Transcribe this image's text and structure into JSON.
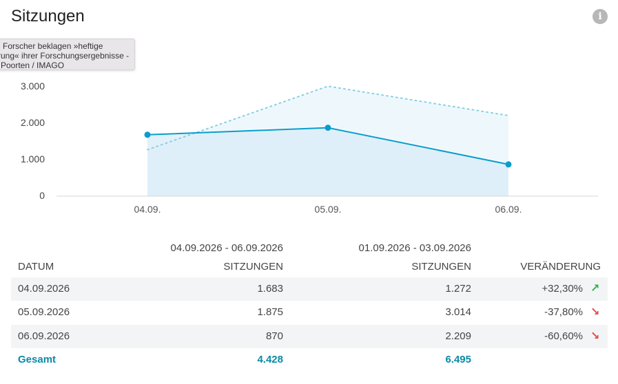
{
  "header": {
    "title": "Sitzungen",
    "info_icon": "info-icon"
  },
  "tooltip": {
    "line1": "Forscher beklagen »heftige",
    "line2": "rung« ihrer Forschungsergebnisse -",
    "line3": "Poorten / IMAGO"
  },
  "chart_data": {
    "type": "line",
    "categories": [
      "04.09.",
      "05.09.",
      "06.09."
    ],
    "series": [
      {
        "values": [
          1683,
          1875,
          870
        ],
        "color": "#0a9dcc",
        "style": "solid"
      },
      {
        "values": [
          1272,
          3014,
          2209
        ],
        "color": "#86cfe3",
        "style": "dotted"
      }
    ],
    "y_ticks": [
      "0",
      "1.000",
      "2.000",
      "3.000"
    ],
    "ylim": [
      0,
      3000
    ],
    "grid": false
  },
  "table": {
    "period_current": "04.09.2026 - 06.09.2026",
    "period_previous": "01.09.2026 - 03.09.2026",
    "columns": [
      "DATUM",
      "SITZUNGEN",
      "SITZUNGEN",
      "VERÄNDERUNG"
    ],
    "rows": [
      {
        "date": "04.09.2026",
        "current": "1.683",
        "previous": "1.272",
        "change": "+32,30%",
        "trend": "up",
        "arrow": "↗"
      },
      {
        "date": "05.09.2026",
        "current": "1.875",
        "previous": "3.014",
        "change": "-37,80%",
        "trend": "down",
        "arrow": "↘"
      },
      {
        "date": "06.09.2026",
        "current": "870",
        "previous": "2.209",
        "change": "-60,60%",
        "trend": "down",
        "arrow": "↘"
      }
    ],
    "total": {
      "label": "Gesamt",
      "current": "4.428",
      "previous": "6.495"
    }
  },
  "colors": {
    "accent": "#0a8aa5",
    "up": "#2db34a",
    "down": "#e04a4a"
  }
}
